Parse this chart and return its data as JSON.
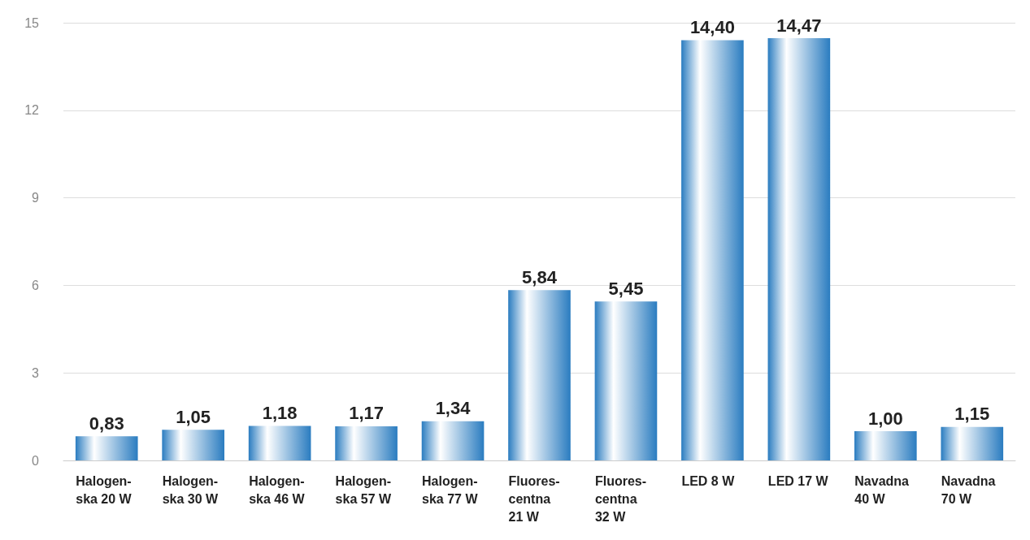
{
  "chart_data": {
    "type": "bar",
    "categories": [
      "Halogen-\nska 20 W",
      "Halogen-\nska 30 W",
      "Halogen-\nska 46 W",
      "Halogen-\nska 57 W",
      "Halogen-\nska 77 W",
      "Fluores-\ncentna\n21 W",
      "Fluores-\ncentna\n32 W",
      "LED 8 W",
      "LED 17 W",
      "Navadna\n40 W",
      "Navadna\n70 W"
    ],
    "values": [
      0.83,
      1.05,
      1.18,
      1.17,
      1.34,
      5.84,
      5.45,
      14.4,
      14.47,
      1.0,
      1.15
    ],
    "value_labels": [
      "0,83",
      "1,05",
      "1,18",
      "1,17",
      "1,34",
      "5,84",
      "5,45",
      "14,40",
      "14,47",
      "1,00",
      "1,15"
    ],
    "color": "#2a7cc0",
    "ylim": [
      0,
      15
    ],
    "yticks": [
      0,
      3,
      6,
      9,
      12,
      15
    ],
    "grid": "y"
  }
}
